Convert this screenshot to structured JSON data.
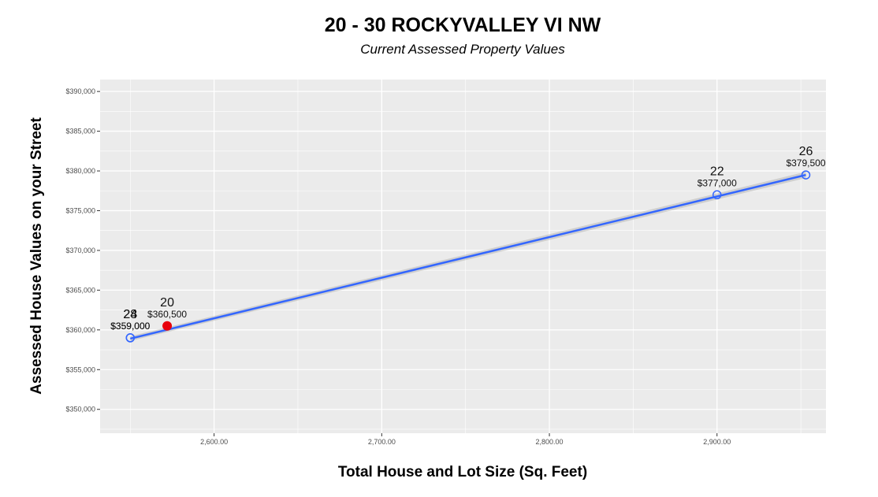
{
  "chart_data": {
    "type": "scatter",
    "title": "20 - 30  ROCKYVALLEY VI NW",
    "subtitle": "Current Assessed Property Values",
    "xlabel": "Total House and Lot Size (Sq. Feet)",
    "ylabel": "Assessed House Values on your Street",
    "xlim": [
      2532,
      2965
    ],
    "ylim": [
      347000,
      391500
    ],
    "x_ticks": [
      2600,
      2700,
      2800,
      2900
    ],
    "x_tick_labels": [
      "2,600.00",
      "2,700.00",
      "2,800.00",
      "2,900.00"
    ],
    "y_ticks": [
      350000,
      355000,
      360000,
      365000,
      370000,
      375000,
      380000,
      385000,
      390000
    ],
    "y_tick_labels": [
      "$350,000",
      "$355,000",
      "$360,000",
      "$365,000",
      "$370,000",
      "$375,000",
      "$380,000",
      "$385,000",
      "$390,000"
    ],
    "grid": true,
    "panel_color": "#ebebeb",
    "line_color": "#3366ff",
    "highlight_color": "#e8000b",
    "trend_line": {
      "x": [
        2550,
        2953
      ],
      "y": [
        358900,
        379500
      ]
    },
    "points": [
      {
        "address": "24",
        "x": 2550,
        "y": 359000,
        "value_label": "$359,000",
        "highlight": false
      },
      {
        "address": "28",
        "x": 2550,
        "y": 359000,
        "value_label": "$359,000",
        "highlight": false
      },
      {
        "address": "20",
        "x": 2572,
        "y": 360500,
        "value_label": "$360,500",
        "highlight": true
      },
      {
        "address": "22",
        "x": 2900,
        "y": 377000,
        "value_label": "$377,000",
        "highlight": false
      },
      {
        "address": "26",
        "x": 2953,
        "y": 379500,
        "value_label": "$379,500",
        "highlight": false
      }
    ]
  }
}
